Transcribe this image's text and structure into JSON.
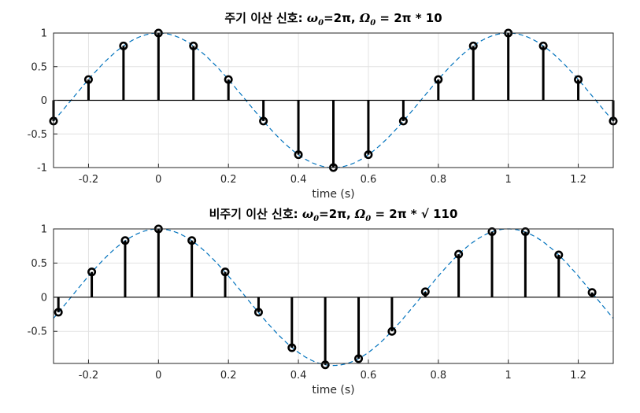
{
  "colors": {
    "curve": "#0072BD",
    "stem": "#000000",
    "grid": "#e2e2e2"
  },
  "chart_data": [
    {
      "type": "stem",
      "title": {
        "prefix": "주기 이산 신호: ",
        "omega": "ω",
        "omega_sub": "0",
        "omega_eq": "=2π, ",
        "Omega": "Ω",
        "Omega_sub": "0",
        "Omega_eq": " = 2π * 10"
      },
      "xlabel": "time (s)",
      "xlim": [
        -0.3,
        1.3
      ],
      "ylim": [
        -1,
        1
      ],
      "grid": true,
      "xticks": [
        -0.2,
        0,
        0.2,
        0.4,
        0.6,
        0.8,
        1,
        1.2
      ],
      "xtick_labels": [
        "-0.2",
        "0",
        "0.2",
        "0.4",
        "0.6",
        "0.8",
        "1",
        "1.2"
      ],
      "yticks": [
        -1,
        -0.5,
        0,
        0.5,
        1
      ],
      "ytick_labels": [
        "-1",
        "-0.5",
        "0",
        "0.5",
        "1"
      ],
      "continuous_curve": {
        "function": "cos(2*pi*t)",
        "style": "dashed"
      },
      "x": [
        -0.3,
        -0.2,
        -0.1,
        0,
        0.1,
        0.2,
        0.3,
        0.4,
        0.5,
        0.6,
        0.7,
        0.8,
        0.9,
        1.0,
        1.1,
        1.2,
        1.3
      ],
      "y": [
        -0.309,
        0.309,
        0.809,
        1.0,
        0.809,
        0.309,
        -0.309,
        -0.809,
        -1.0,
        -0.809,
        -0.309,
        0.309,
        0.809,
        1.0,
        0.809,
        0.309,
        -0.309
      ]
    },
    {
      "type": "stem",
      "title": {
        "prefix": "비주기 이산 신호: ",
        "omega": "ω",
        "omega_sub": "0",
        "omega_eq": "=2π, ",
        "Omega": "Ω",
        "Omega_sub": "0",
        "Omega_eq": " = 2π * √ 110"
      },
      "xlabel": "time (s)",
      "xlim": [
        -0.3,
        1.3
      ],
      "ylim": [
        -0.97,
        1
      ],
      "grid": true,
      "xticks": [
        -0.2,
        0,
        0.2,
        0.4,
        0.6,
        0.8,
        1,
        1.2
      ],
      "xtick_labels": [
        "-0.2",
        "0",
        "0.2",
        "0.4",
        "0.6",
        "0.8",
        "1",
        "1.2"
      ],
      "yticks": [
        -0.5,
        0,
        0.5,
        1
      ],
      "ytick_labels": [
        "-0.5",
        "0",
        "0.5",
        "1"
      ],
      "continuous_curve": {
        "function": "cos(2*pi*t)",
        "style": "dashed"
      },
      "x": [
        -0.2861,
        -0.1907,
        -0.0953,
        0,
        0.0953,
        0.1907,
        0.2861,
        0.3814,
        0.4767,
        0.5721,
        0.6674,
        0.7628,
        0.8581,
        0.9535,
        1.0488,
        1.1442,
        1.2395
      ],
      "y": [
        -0.22,
        0.37,
        0.83,
        1.0,
        0.83,
        0.37,
        -0.22,
        -0.74,
        -0.99,
        -0.9,
        -0.5,
        0.08,
        0.63,
        0.96,
        0.96,
        0.62,
        0.07
      ]
    }
  ]
}
